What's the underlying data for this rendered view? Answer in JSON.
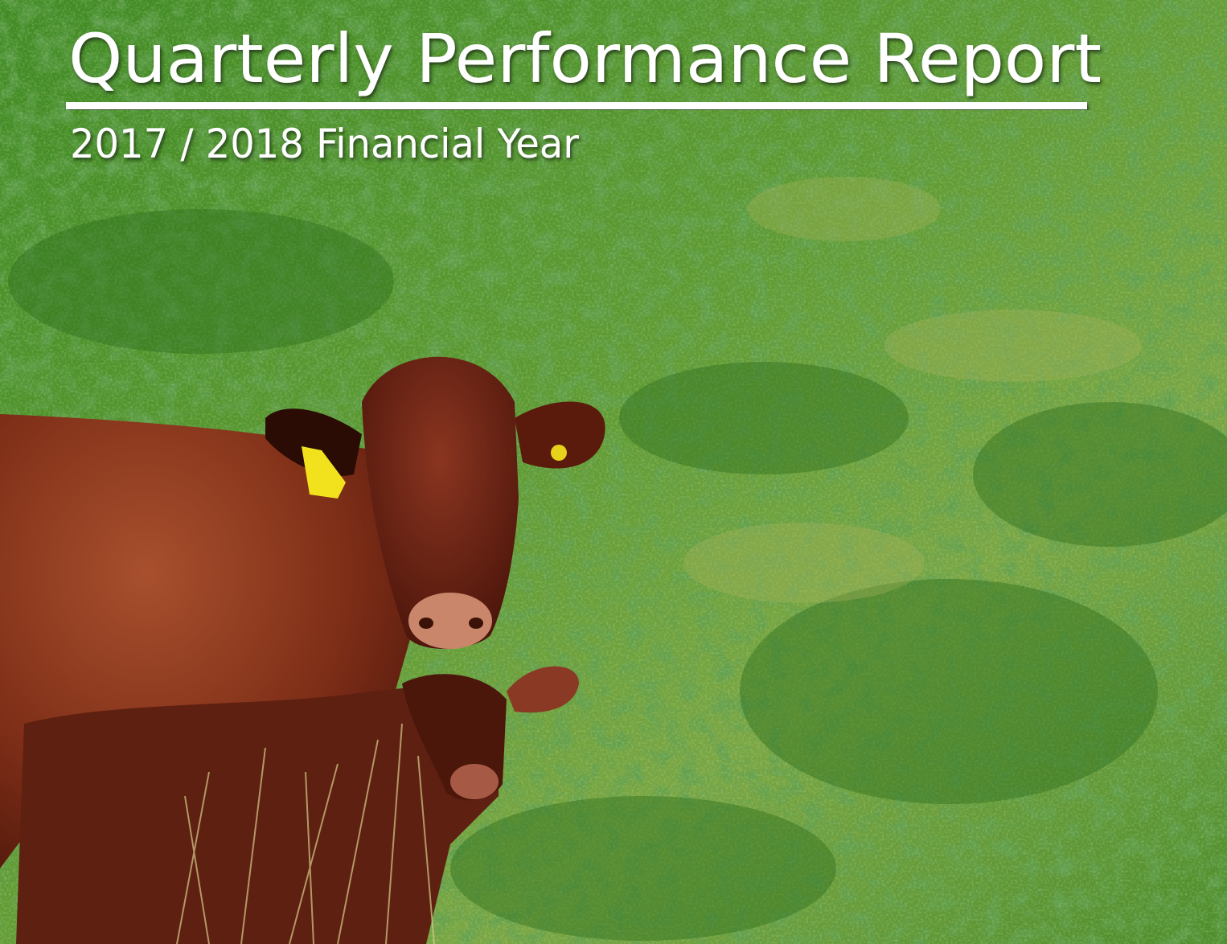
{
  "header": {
    "title": "Quarterly Performance Report",
    "subtitle": "2017 / 2018 Financial Year"
  }
}
